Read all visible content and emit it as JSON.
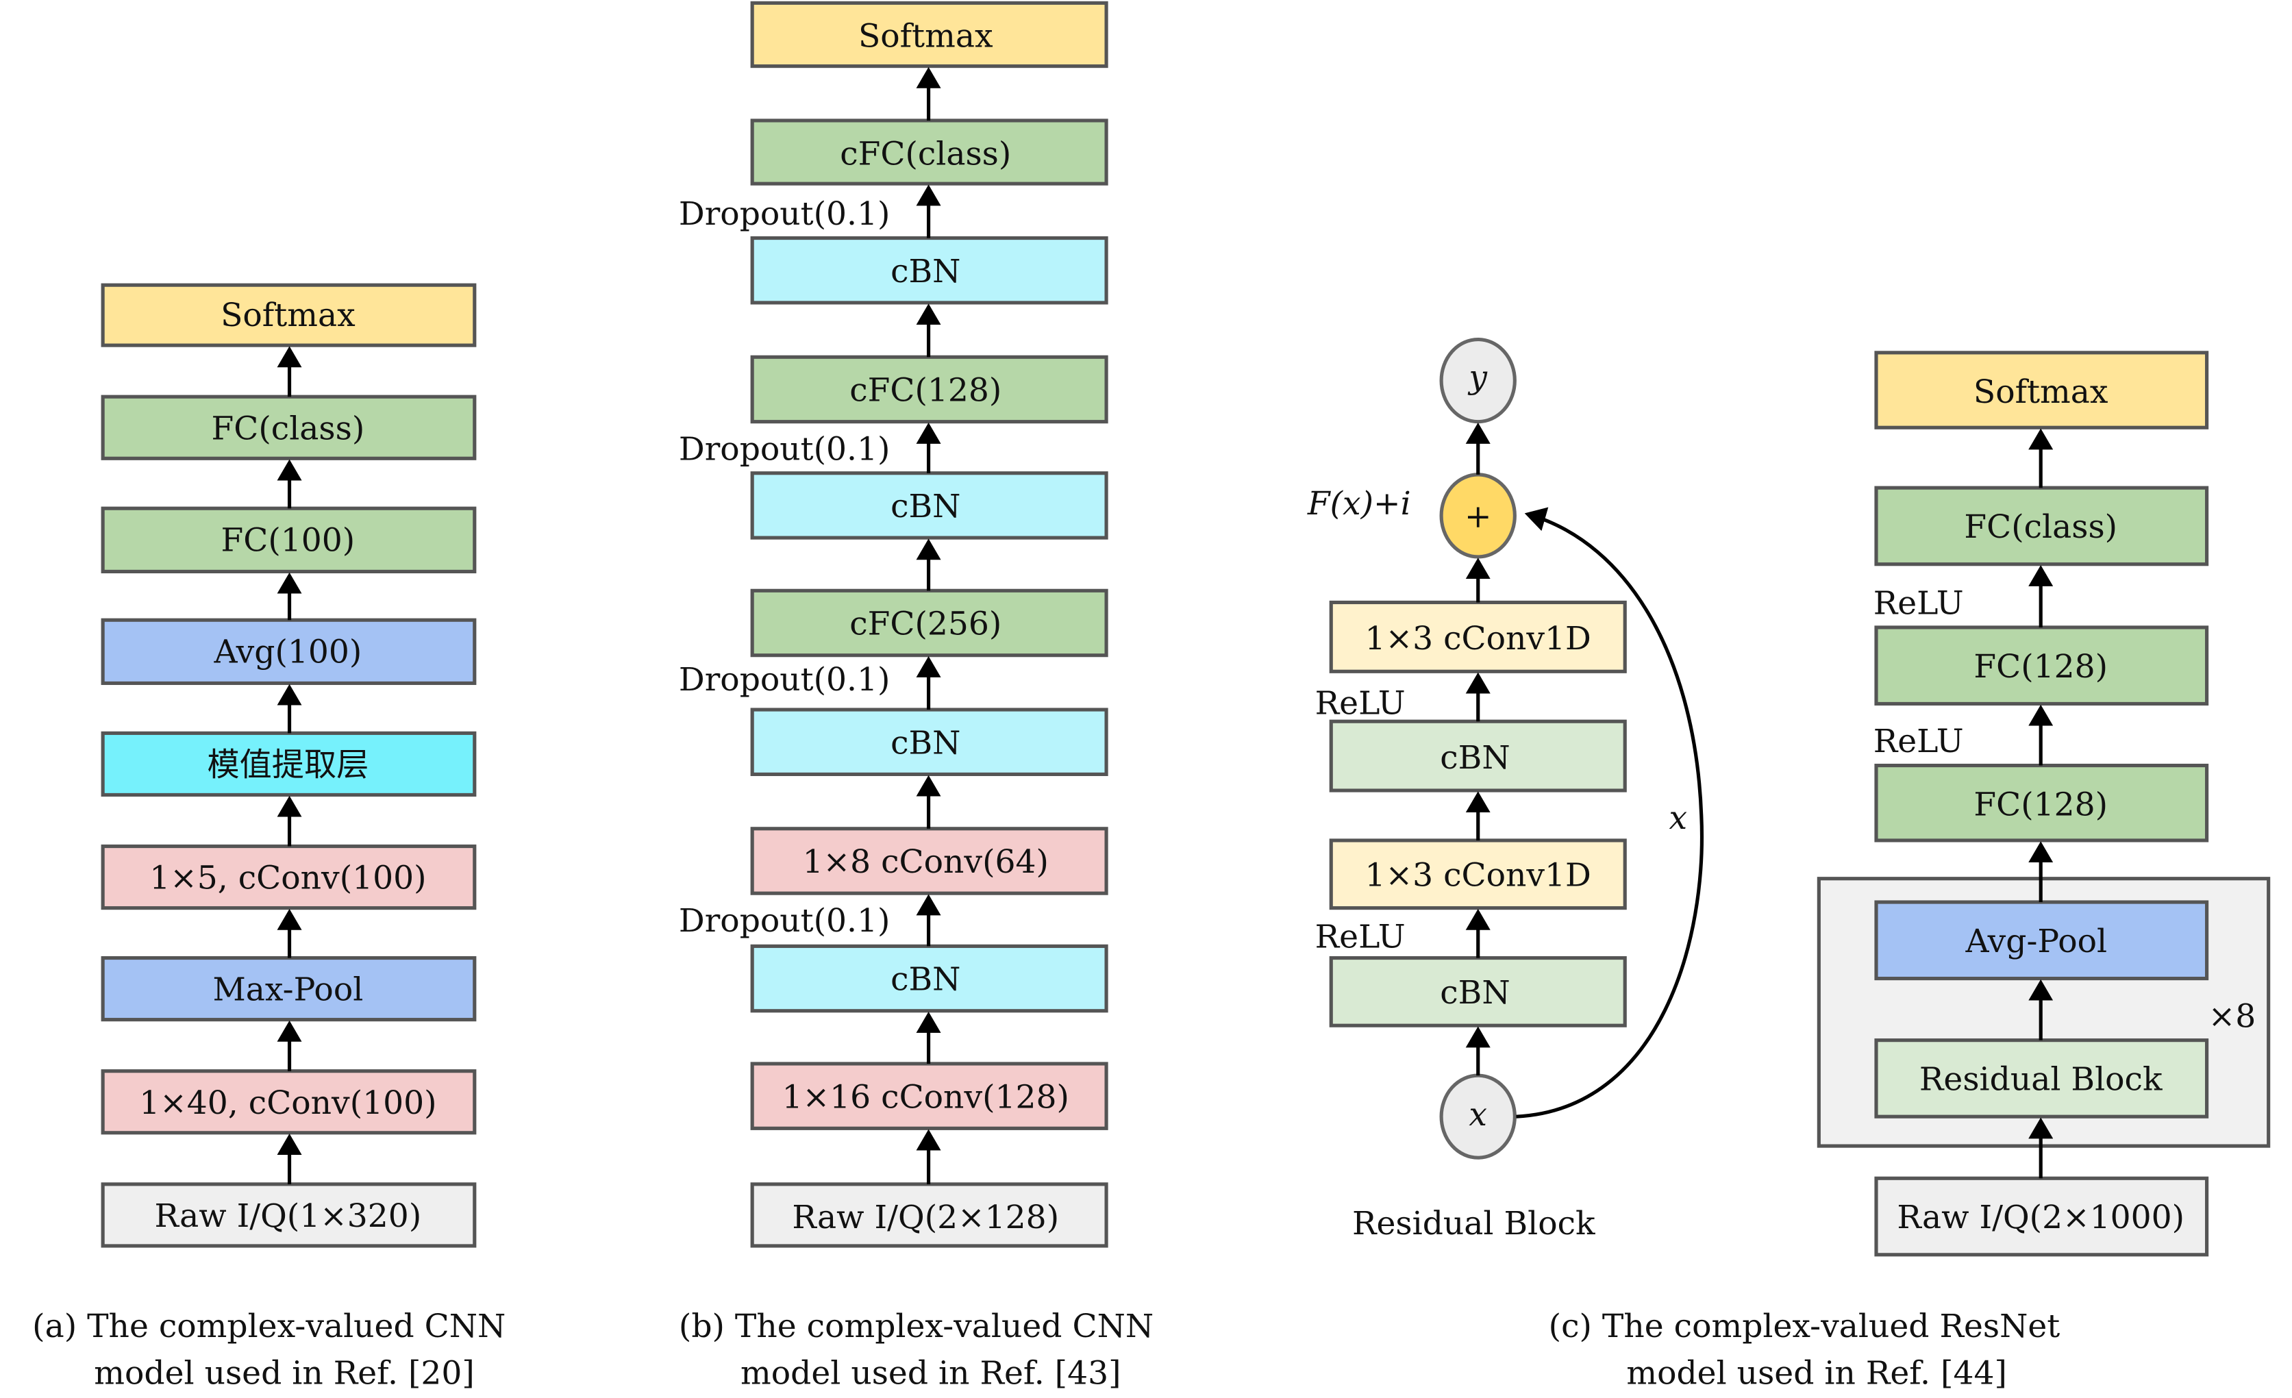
{
  "panel_a": {
    "layers": [
      "Softmax",
      "FC(class)",
      "FC(100)",
      "Avg(100)",
      "模值提取层",
      "1×5, cConv(100)",
      "Max-Pool",
      "1×40, cConv(100)",
      "Raw I/Q(1×320)"
    ],
    "caption_line1": "(a) The complex-valued CNN",
    "caption_line2": "model used in Ref. [20]"
  },
  "panel_b": {
    "layers": [
      "Softmax",
      "cFC(class)",
      "cBN",
      "cFC(128)",
      "cBN",
      "cFC(256)",
      "cBN",
      "1×8 cConv(64)",
      "cBN",
      "1×16 cConv(128)",
      "Raw I/Q(2×128)"
    ],
    "dropout_label": "Dropout(0.1)",
    "caption_line1": "(b) The complex-valued CNN",
    "caption_line2": "model used in Ref. [43]"
  },
  "panel_c": {
    "residual_block": {
      "output_node": "y",
      "sum_node": "+",
      "sum_label": "F(x)+i",
      "layers": [
        "1×3 cConv1D",
        "cBN",
        "1×3 cConv1D",
        "cBN"
      ],
      "activation_label": "ReLU",
      "input_node": "x",
      "skip_label": "x",
      "title": "Residual Block"
    },
    "resnet": {
      "layers": [
        "Softmax",
        "FC(class)",
        "FC(128)",
        "FC(128)",
        "Avg-Pool",
        "Residual Block",
        "Raw I/Q(2×1000)"
      ],
      "activation_label": "ReLU",
      "repeat_label": "×8"
    },
    "caption_line1": "(c) The complex-valued ResNet",
    "caption_line2": "model used in Ref. [44]"
  },
  "colors": {
    "softmax": "#ffe599",
    "fc": "#b6d7a8",
    "pool": "#a4c2f4",
    "modulus": "#76f1fc",
    "conv": "#f4cccc",
    "input": "#efefef",
    "cbn": "#b8f4fc",
    "conv1d": "#fff2cc",
    "res_cbn": "#d9ead3",
    "sum_node": "#ffd966"
  }
}
